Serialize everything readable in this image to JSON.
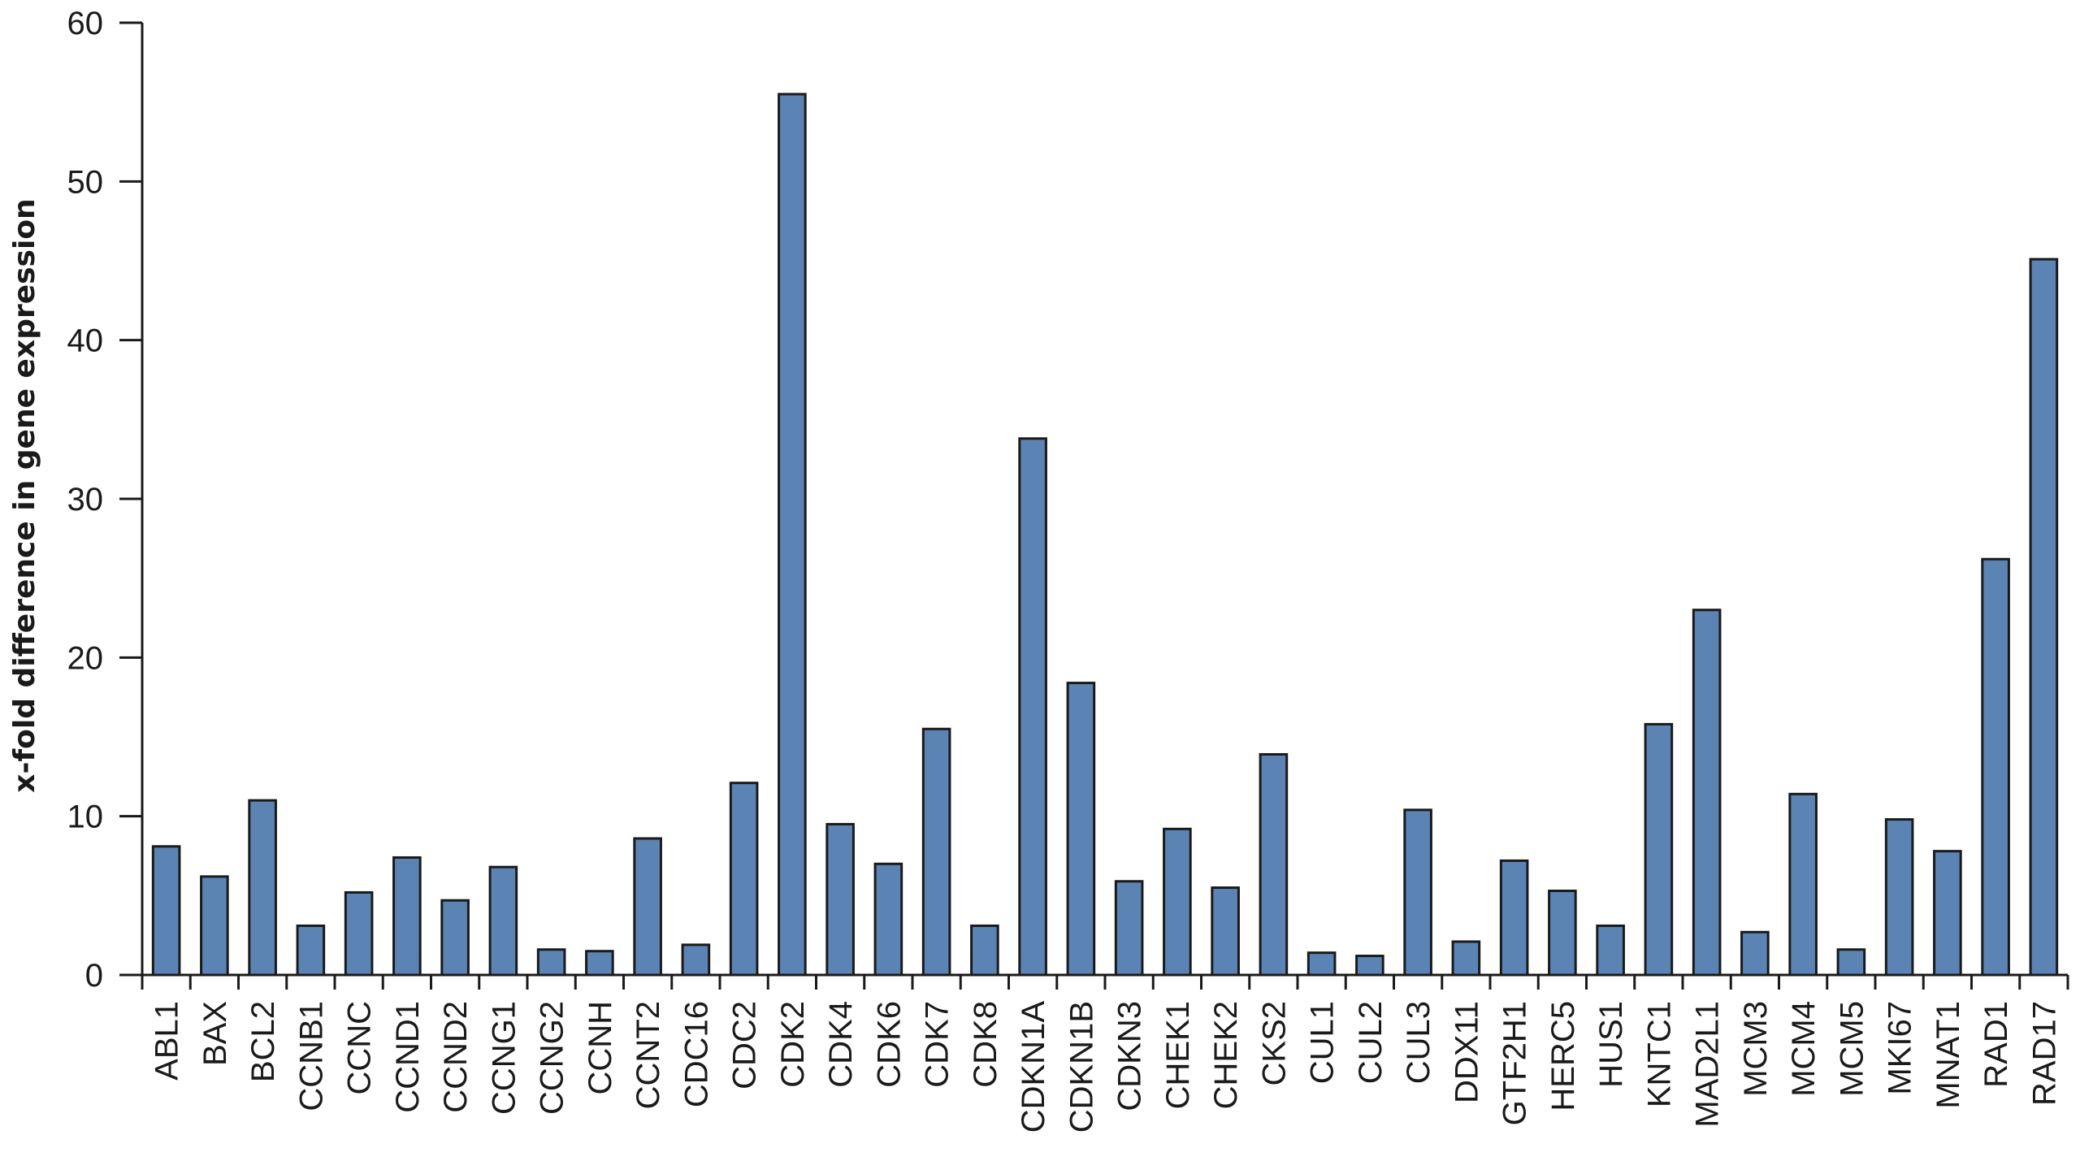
{
  "chart_data": {
    "type": "bar",
    "title": "",
    "xlabel": "",
    "ylabel": "x-fold difference in gene expression",
    "ylim": [
      0,
      60
    ],
    "yticks": [
      0,
      10,
      20,
      30,
      40,
      50,
      60
    ],
    "grid": false,
    "bar_color": "#5b84b5",
    "categories": [
      "ABL1",
      "BAX",
      "BCL2",
      "CCNB1",
      "CCNC",
      "CCND1",
      "CCND2",
      "CCNG1",
      "CCNG2",
      "CCNH",
      "CCNT2",
      "CDC16",
      "CDC2",
      "CDK2",
      "CDK4",
      "CDK6",
      "CDK7",
      "CDK8",
      "CDKN1A",
      "CDKN1B",
      "CDKN3",
      "CHEK1",
      "CHEK2",
      "CKS2",
      "CUL1",
      "CUL2",
      "CUL3",
      "DDX11",
      "GTF2H1",
      "HERC5",
      "HUS1",
      "KNTC1",
      "MAD2L1",
      "MCM3",
      "MCM4",
      "MCM5",
      "MKI67",
      "MNAT1",
      "RAD1",
      "RAD17"
    ],
    "values": [
      8.1,
      6.2,
      11.0,
      3.1,
      5.2,
      7.4,
      4.7,
      6.8,
      1.6,
      1.5,
      8.6,
      1.9,
      12.1,
      55.5,
      9.5,
      7.0,
      15.5,
      3.1,
      33.8,
      18.4,
      5.9,
      9.2,
      5.5,
      13.9,
      1.4,
      1.2,
      10.4,
      2.1,
      7.2,
      5.3,
      3.1,
      15.8,
      23.0,
      2.7,
      11.4,
      1.6,
      9.8,
      7.8,
      26.2,
      45.1
    ]
  }
}
